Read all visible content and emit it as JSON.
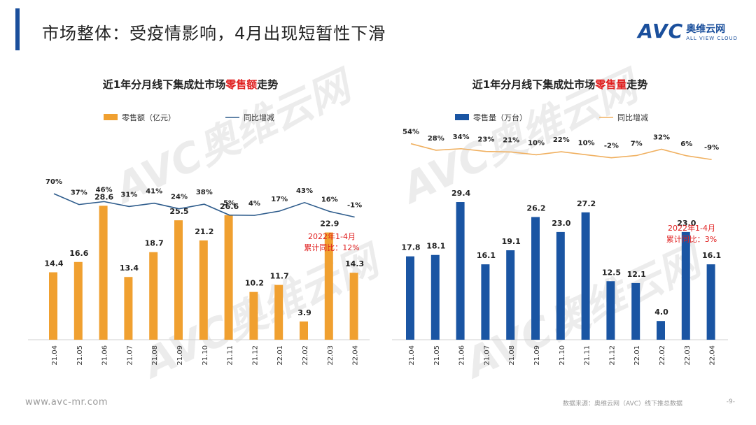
{
  "page": {
    "title": "市场整体：受疫情影响，4月出现短暂性下滑",
    "logo": {
      "mark": "AVC",
      "cn": "奥维云网",
      "en": "ALL VIEW CLOUD"
    },
    "footer_url": "www.avc-mr.com",
    "footer_source": "数据来源：奥维云网（AVC）线下推总数据",
    "page_number": "-9-",
    "watermark_text": "AVC奥维云网",
    "watermark_en": "ALL VIEW CLOUD"
  },
  "colors": {
    "title_bar": "#1a4f9c",
    "orange": "#f0a030",
    "blue": "#1a55a3",
    "line_blue": "#2e5c8c",
    "line_orange": "#f0b060",
    "red": "#e02020"
  },
  "chart_data": [
    {
      "type": "bar",
      "title_pre": "近1年分月线下集成灶市场",
      "title_hl": "零售额",
      "title_post": "走势",
      "categories": [
        "21.04",
        "21.05",
        "21.06",
        "21.07",
        "21.08",
        "21.09",
        "21.10",
        "21.11",
        "21.12",
        "22.01",
        "22.02",
        "22.03",
        "22.04"
      ],
      "series": [
        {
          "name": "零售额（亿元）",
          "type": "bar",
          "values": [
            14.4,
            16.6,
            28.6,
            13.4,
            18.7,
            25.5,
            21.2,
            26.6,
            10.2,
            11.7,
            3.9,
            22.9,
            14.3
          ],
          "labels": [
            "14.4",
            "16.6",
            "28.6",
            "13.4",
            "18.7",
            "25.5",
            "21.2",
            "26.6",
            "10.2",
            "11.7",
            "3.9",
            "22.9",
            "14.3"
          ]
        },
        {
          "name": "同比增减",
          "type": "line",
          "values": [
            70,
            37,
            46,
            31,
            41,
            24,
            38,
            5,
            4,
            17,
            43,
            16,
            -1
          ],
          "labels": [
            "70%",
            "37%",
            "46%",
            "31%",
            "41%",
            "24%",
            "38%",
            "5%",
            "4%",
            "17%",
            "43%",
            "16%",
            "-1%"
          ]
        }
      ],
      "annotation": [
        "2022年1-4月",
        "累计同比：12%"
      ]
    },
    {
      "type": "bar",
      "title_pre": "近1年分月线下集成灶市场",
      "title_hl": "零售量",
      "title_post": "走势",
      "categories": [
        "21.04",
        "21.05",
        "21.06",
        "21.07",
        "21.08",
        "21.09",
        "21.10",
        "21.11",
        "21.12",
        "22.01",
        "22.02",
        "22.03",
        "22.04"
      ],
      "series": [
        {
          "name": "零售量（万台）",
          "type": "bar",
          "values": [
            17.8,
            18.1,
            29.4,
            16.1,
            19.1,
            26.2,
            23.0,
            27.2,
            12.5,
            12.1,
            4.0,
            23.0,
            16.1
          ],
          "labels": [
            "17.8",
            "18.1",
            "29.4",
            "16.1",
            "19.1",
            "26.2",
            "23.0",
            "27.2",
            "12.5",
            "12.1",
            "4.0",
            "23.0",
            "16.1"
          ]
        },
        {
          "name": "同比增减",
          "type": "line",
          "values": [
            54,
            28,
            34,
            23,
            21,
            10,
            22,
            10,
            -2,
            7,
            32,
            6,
            -9
          ],
          "labels": [
            "54%",
            "28%",
            "34%",
            "23%",
            "21%",
            "10%",
            "22%",
            "10%",
            "-2%",
            "7%",
            "32%",
            "6%",
            "-9%"
          ]
        }
      ],
      "annotation": [
        "2022年1-4月",
        "累计同比：3%"
      ]
    }
  ]
}
